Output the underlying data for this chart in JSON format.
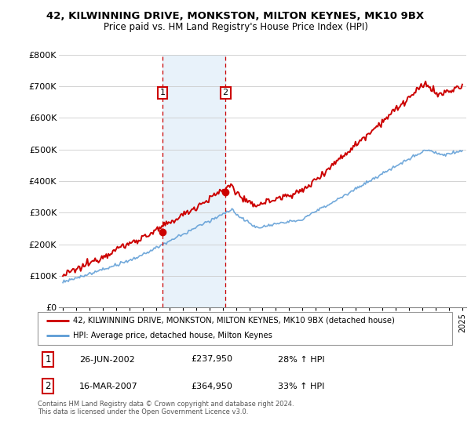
{
  "title": "42, KILWINNING DRIVE, MONKSTON, MILTON KEYNES, MK10 9BX",
  "subtitle": "Price paid vs. HM Land Registry's House Price Index (HPI)",
  "legend_line1": "42, KILWINNING DRIVE, MONKSTON, MILTON KEYNES, MK10 9BX (detached house)",
  "legend_line2": "HPI: Average price, detached house, Milton Keynes",
  "footnote": "Contains HM Land Registry data © Crown copyright and database right 2024.\nThis data is licensed under the Open Government Licence v3.0.",
  "transaction1_date": "26-JUN-2002",
  "transaction1_price": "£237,950",
  "transaction1_hpi": "28% ↑ HPI",
  "transaction2_date": "16-MAR-2007",
  "transaction2_price": "£364,950",
  "transaction2_hpi": "33% ↑ HPI",
  "hpi_color": "#5b9bd5",
  "price_color": "#cc0000",
  "shade_color": "#daeaf7",
  "ylim": [
    0,
    800000
  ],
  "yticks": [
    0,
    100000,
    200000,
    300000,
    400000,
    500000,
    600000,
    700000,
    800000
  ],
  "ytick_labels": [
    "£0",
    "£100K",
    "£200K",
    "£300K",
    "£400K",
    "£500K",
    "£600K",
    "£700K",
    "£800K"
  ],
  "transaction1_x": 2002.49,
  "transaction1_y": 237950,
  "transaction2_x": 2007.21,
  "transaction2_y": 364950,
  "xlim": [
    1994.7,
    2025.3
  ]
}
